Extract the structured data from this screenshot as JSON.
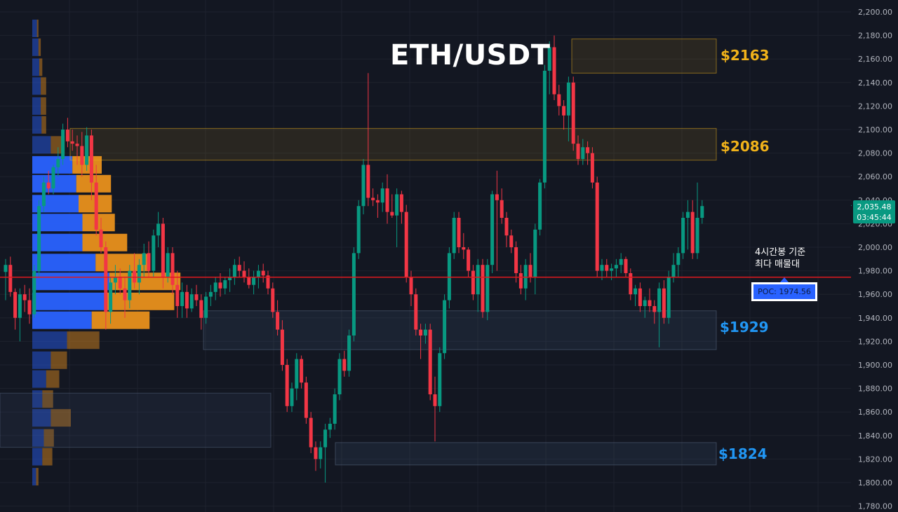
{
  "title": "ETH/USDT",
  "colors": {
    "background": "#131722",
    "grid": "#1e222d",
    "bull": "#089981",
    "bear": "#f23645",
    "poc_line": "#e0191e",
    "resistance": "#f0b21a",
    "support": "#2196f3",
    "profile_buy": "#2962ff",
    "profile_sell": "#e8901c"
  },
  "current_price": {
    "price": "2,035.48",
    "countdown": "03:45:44",
    "value": 2035.48
  },
  "poc": {
    "label": "POC: 1974.56",
    "value": 1974.56
  },
  "annotation": {
    "line1": "4시간봉 기준",
    "line2": "최다 매물대"
  },
  "chart_data": {
    "type": "candlestick",
    "pair": "ETH/USDT",
    "y_axis": {
      "min": 1780,
      "max": 2200,
      "step": 20,
      "side": "right",
      "ticks": [
        "2,200.00",
        "2,180.00",
        "2,160.00",
        "2,140.00",
        "2,120.00",
        "2,100.00",
        "2,080.00",
        "2,060.00",
        "2,040.00",
        "2,020.00",
        "2,000.00",
        "1,980.00",
        "1,960.00",
        "1,940.00",
        "1,920.00",
        "1,900.00",
        "1,880.00",
        "1,860.00",
        "1,840.00",
        "1,820.00",
        "1,800.00",
        "1,780.00"
      ]
    },
    "grid": true,
    "zones": [
      {
        "label": "$2163",
        "top": 2177,
        "bottom": 2148,
        "kind": "resistance"
      },
      {
        "label": "$2086",
        "top": 2101,
        "bottom": 2074,
        "kind": "resistance"
      },
      {
        "label": "$1929",
        "top": 1946,
        "bottom": 1913,
        "kind": "support"
      },
      {
        "label": "$1824",
        "top": 1834,
        "bottom": 1815,
        "kind": "support"
      }
    ],
    "volume_profile": [
      {
        "price": 2186,
        "buy": 6,
        "sell": 2
      },
      {
        "price": 2170,
        "buy": 8,
        "sell": 3
      },
      {
        "price": 2153,
        "buy": 9,
        "sell": 4
      },
      {
        "price": 2137,
        "buy": 11,
        "sell": 7
      },
      {
        "price": 2120,
        "buy": 11,
        "sell": 7
      },
      {
        "price": 2104,
        "buy": 12,
        "sell": 6
      },
      {
        "price": 2087,
        "buy": 24,
        "sell": 18
      },
      {
        "price": 2070,
        "buy": 52,
        "sell": 38
      },
      {
        "price": 2054,
        "buy": 57,
        "sell": 45
      },
      {
        "price": 2037,
        "buy": 60,
        "sell": 43
      },
      {
        "price": 2021,
        "buy": 65,
        "sell": 42
      },
      {
        "price": 2004,
        "buy": 65,
        "sell": 58
      },
      {
        "price": 1987,
        "buy": 82,
        "sell": 70
      },
      {
        "price": 1971,
        "buy": 100,
        "sell": 92
      },
      {
        "price": 1954,
        "buy": 95,
        "sell": 89
      },
      {
        "price": 1938,
        "buy": 77,
        "sell": 75
      },
      {
        "price": 1921,
        "buy": 45,
        "sell": 42
      },
      {
        "price": 1904,
        "buy": 24,
        "sell": 21
      },
      {
        "price": 1888,
        "buy": 18,
        "sell": 17
      },
      {
        "price": 1871,
        "buy": 13,
        "sell": 14
      },
      {
        "price": 1855,
        "buy": 24,
        "sell": 26
      },
      {
        "price": 1838,
        "buy": 15,
        "sell": 13
      },
      {
        "price": 1822,
        "buy": 13,
        "sell": 13
      },
      {
        "price": 1805,
        "buy": 5,
        "sell": 3
      }
    ],
    "candles": [
      [
        1979,
        1990,
        1955,
        1985
      ],
      [
        1985,
        1992,
        1958,
        1962
      ],
      [
        1962,
        1965,
        1930,
        1940
      ],
      [
        1940,
        1965,
        1920,
        1960
      ],
      [
        1960,
        1968,
        1945,
        1955
      ],
      [
        1955,
        1965,
        1935,
        1943
      ],
      [
        1943,
        1985,
        1940,
        1980
      ],
      [
        1980,
        2040,
        1975,
        2035
      ],
      [
        2035,
        2060,
        2030,
        2055
      ],
      [
        2055,
        2065,
        2045,
        2050
      ],
      [
        2050,
        2070,
        2045,
        2068
      ],
      [
        2068,
        2085,
        2060,
        2075
      ],
      [
        2075,
        2105,
        2070,
        2100
      ],
      [
        2100,
        2110,
        2085,
        2090
      ],
      [
        2090,
        2100,
        2082,
        2088
      ],
      [
        2088,
        2095,
        2070,
        2086
      ],
      [
        2086,
        2098,
        2060,
        2070
      ],
      [
        2070,
        2102,
        2065,
        2095
      ],
      [
        2095,
        2100,
        2040,
        2055
      ],
      [
        2055,
        2070,
        2010,
        2015
      ],
      [
        2015,
        2025,
        1995,
        2000
      ],
      [
        2000,
        2005,
        1930,
        1945
      ],
      [
        1945,
        1975,
        1935,
        1970
      ],
      [
        1970,
        1985,
        1960,
        1975
      ],
      [
        1975,
        1982,
        1960,
        1965
      ],
      [
        1965,
        1975,
        1940,
        1955
      ],
      [
        1955,
        1985,
        1948,
        1980
      ],
      [
        1980,
        1995,
        1965,
        1970
      ],
      [
        1970,
        1990,
        1960,
        1985
      ],
      [
        1985,
        2003,
        1975,
        1995
      ],
      [
        1995,
        2005,
        1975,
        1980
      ],
      [
        1980,
        2015,
        1975,
        2010
      ],
      [
        2010,
        2030,
        2000,
        2020
      ],
      [
        2020,
        2025,
        1965,
        1975
      ],
      [
        1975,
        2000,
        1970,
        1995
      ],
      [
        1995,
        2000,
        1960,
        1968
      ],
      [
        1968,
        1980,
        1940,
        1950
      ],
      [
        1950,
        1970,
        1940,
        1962
      ],
      [
        1962,
        1968,
        1940,
        1948
      ],
      [
        1948,
        1965,
        1945,
        1960
      ],
      [
        1960,
        1968,
        1950,
        1955
      ],
      [
        1955,
        1960,
        1930,
        1940
      ],
      [
        1940,
        1962,
        1935,
        1958
      ],
      [
        1958,
        1968,
        1950,
        1962
      ],
      [
        1962,
        1975,
        1955,
        1970
      ],
      [
        1970,
        1978,
        1958,
        1965
      ],
      [
        1965,
        1975,
        1960,
        1972
      ],
      [
        1972,
        1982,
        1962,
        1975
      ],
      [
        1975,
        1990,
        1968,
        1985
      ],
      [
        1985,
        1992,
        1975,
        1980
      ],
      [
        1980,
        1988,
        1970,
        1975
      ],
      [
        1975,
        1982,
        1965,
        1968
      ],
      [
        1968,
        1980,
        1960,
        1975
      ],
      [
        1975,
        1985,
        1965,
        1980
      ],
      [
        1980,
        1986,
        1970,
        1976
      ],
      [
        1976,
        1980,
        1960,
        1965
      ],
      [
        1965,
        1970,
        1940,
        1945
      ],
      [
        1945,
        1955,
        1925,
        1930
      ],
      [
        1930,
        1938,
        1895,
        1900
      ],
      [
        1900,
        1905,
        1860,
        1865
      ],
      [
        1865,
        1885,
        1860,
        1880
      ],
      [
        1880,
        1910,
        1870,
        1905
      ],
      [
        1905,
        1908,
        1880,
        1885
      ],
      [
        1885,
        1890,
        1850,
        1855
      ],
      [
        1855,
        1860,
        1825,
        1830
      ],
      [
        1830,
        1835,
        1810,
        1820
      ],
      [
        1820,
        1835,
        1812,
        1830
      ],
      [
        1830,
        1850,
        1800,
        1845
      ],
      [
        1845,
        1855,
        1838,
        1850
      ],
      [
        1850,
        1880,
        1845,
        1875
      ],
      [
        1875,
        1910,
        1870,
        1905
      ],
      [
        1905,
        1912,
        1890,
        1895
      ],
      [
        1895,
        1930,
        1890,
        1925
      ],
      [
        1925,
        2000,
        1920,
        1995
      ],
      [
        1995,
        2040,
        1990,
        2035
      ],
      [
        2035,
        2075,
        2028,
        2070
      ],
      [
        2070,
        2148,
        2035,
        2042
      ],
      [
        2042,
        2050,
        2035,
        2040
      ],
      [
        2040,
        2045,
        2025,
        2038
      ],
      [
        2038,
        2055,
        2030,
        2050
      ],
      [
        2050,
        2062,
        2020,
        2030
      ],
      [
        2030,
        2045,
        2025,
        2027
      ],
      [
        2027,
        2050,
        2000,
        2045
      ],
      [
        2045,
        2048,
        2020,
        2030
      ],
      [
        2030,
        2036,
        1970,
        1975
      ],
      [
        1975,
        1980,
        1950,
        1960
      ],
      [
        1960,
        1965,
        1925,
        1930
      ],
      [
        1930,
        1935,
        1905,
        1925
      ],
      [
        1925,
        1935,
        1918,
        1930
      ],
      [
        1930,
        1935,
        1870,
        1875
      ],
      [
        1875,
        1890,
        1835,
        1865
      ],
      [
        1865,
        1915,
        1860,
        1910
      ],
      [
        1910,
        1960,
        1905,
        1955
      ],
      [
        1955,
        2000,
        1948,
        1995
      ],
      [
        1995,
        2030,
        1990,
        2025
      ],
      [
        2025,
        2030,
        1995,
        2000
      ],
      [
        2000,
        2012,
        1990,
        1998
      ],
      [
        1998,
        2000,
        1975,
        1980
      ],
      [
        1980,
        1985,
        1955,
        1960
      ],
      [
        1960,
        1990,
        1945,
        1985
      ],
      [
        1985,
        1990,
        1940,
        1945
      ],
      [
        1945,
        1990,
        1938,
        1985
      ],
      [
        1985,
        2048,
        1978,
        2045
      ],
      [
        2045,
        2065,
        1980,
        2040
      ],
      [
        2040,
        2050,
        2020,
        2025
      ],
      [
        2025,
        2030,
        2000,
        2010
      ],
      [
        2010,
        2015,
        1995,
        2000
      ],
      [
        2000,
        2005,
        1970,
        1978
      ],
      [
        1978,
        1985,
        1960,
        1965
      ],
      [
        1965,
        1990,
        1955,
        1985
      ],
      [
        1985,
        1995,
        1970,
        1975
      ],
      [
        1975,
        2020,
        1960,
        2015
      ],
      [
        2015,
        2058,
        2010,
        2055
      ],
      [
        2055,
        2155,
        2050,
        2150
      ],
      [
        2150,
        2175,
        2130,
        2170
      ],
      [
        2170,
        2180,
        2125,
        2130
      ],
      [
        2130,
        2138,
        2112,
        2120
      ],
      [
        2120,
        2125,
        2100,
        2112
      ],
      [
        2112,
        2145,
        2090,
        2140
      ],
      [
        2140,
        2145,
        2082,
        2088
      ],
      [
        2088,
        2095,
        2070,
        2075
      ],
      [
        2075,
        2092,
        2070,
        2085
      ],
      [
        2085,
        2090,
        2070,
        2080
      ],
      [
        2080,
        2085,
        2050,
        2055
      ],
      [
        2055,
        2060,
        1975,
        1980
      ],
      [
        1980,
        1990,
        1972,
        1985
      ],
      [
        1985,
        1990,
        1975,
        1980
      ],
      [
        1980,
        1986,
        1972,
        1982
      ],
      [
        1982,
        1990,
        1975,
        1985
      ],
      [
        1985,
        1995,
        1978,
        1990
      ],
      [
        1990,
        1992,
        1975,
        1978
      ],
      [
        1978,
        1982,
        1955,
        1960
      ],
      [
        1960,
        1968,
        1950,
        1965
      ],
      [
        1965,
        1970,
        1945,
        1950
      ],
      [
        1950,
        1958,
        1940,
        1955
      ],
      [
        1955,
        1965,
        1945,
        1950
      ],
      [
        1950,
        1955,
        1935,
        1945
      ],
      [
        1945,
        1970,
        1915,
        1965
      ],
      [
        1965,
        1972,
        1935,
        1940
      ],
      [
        1940,
        1980,
        1935,
        1975
      ],
      [
        1975,
        1995,
        1970,
        1985
      ],
      [
        1985,
        2000,
        1975,
        1995
      ],
      [
        1995,
        2030,
        1990,
        2025
      ],
      [
        2025,
        2040,
        1998,
        2030
      ],
      [
        2030,
        2040,
        1990,
        1995
      ],
      [
        1995,
        2055,
        1990,
        2025
      ],
      [
        2025,
        2040,
        2020,
        2035
      ]
    ]
  }
}
